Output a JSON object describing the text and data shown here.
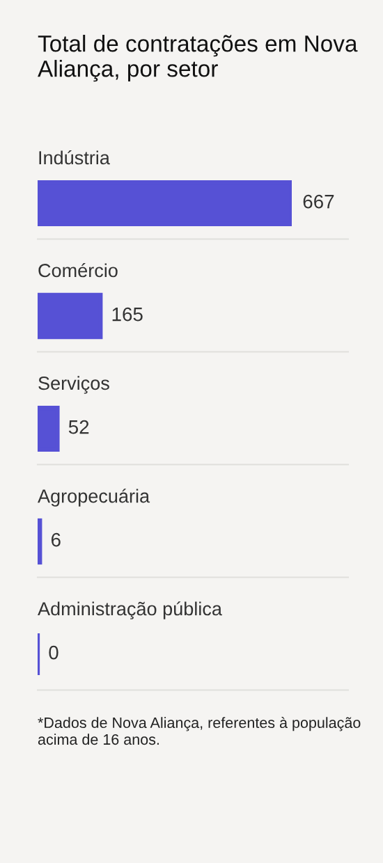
{
  "chart_data": {
    "type": "bar",
    "orientation": "horizontal",
    "title": "Total de contratações em Nova Aliança, por setor",
    "categories": [
      "Indústria",
      "Comércio",
      "Serviços",
      "Agropecuária",
      "Administração pública"
    ],
    "values": [
      667,
      165,
      52,
      6,
      0
    ],
    "color": "#5651d5",
    "data_labels": true,
    "annotations": [
      "*Dados de Nova Aliança, referentes à população acima de 16 anos."
    ]
  }
}
